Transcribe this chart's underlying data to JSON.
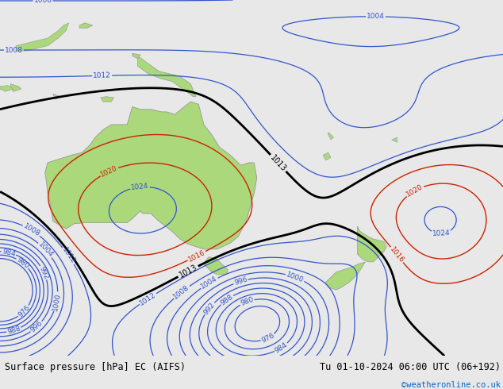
{
  "title_left": "Surface pressure [hPa] EC (AIFS)",
  "title_right": "Tu 01-10-2024 06:00 UTC (06+192)",
  "copyright": "©weatheronline.co.uk",
  "copyright_color": "#0066cc",
  "bg_color": "#e8e8e8",
  "land_color": "#aad87a",
  "border_color": "#999999",
  "text_color": "#000000",
  "map_bg": "#e8e8e8",
  "bottom_bar_color": "#e0e0e0",
  "fig_width": 6.34,
  "fig_height": 4.9,
  "dpi": 100,
  "blue_color": "#3355cc",
  "red_color": "#cc2200",
  "black_thick_color": "#000000"
}
